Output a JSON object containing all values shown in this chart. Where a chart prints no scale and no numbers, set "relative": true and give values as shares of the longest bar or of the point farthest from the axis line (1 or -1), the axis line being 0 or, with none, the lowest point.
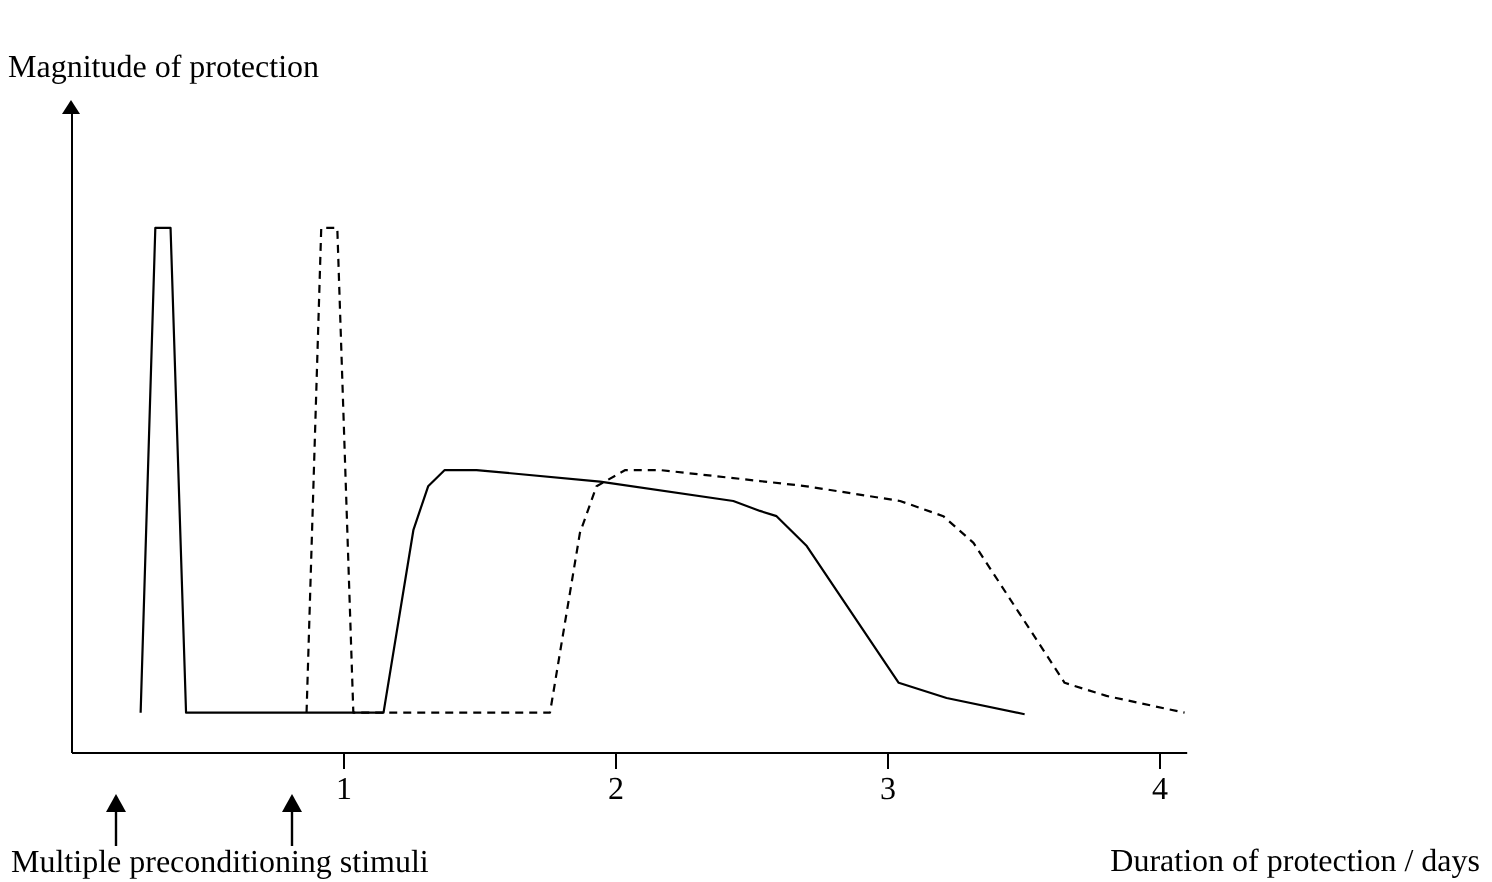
{
  "chart_data": {
    "type": "line",
    "relative": true,
    "xlabel": "Duration of protection / days",
    "ylabel": "Magnitude of protection",
    "annotations": [
      "Multiple preconditioning stimuli"
    ],
    "xlim": [
      0,
      4.1
    ],
    "xticks": [
      1,
      2,
      3,
      4
    ],
    "series": [
      {
        "color": "#000000",
        "line_style": "solid",
        "x": [
          0.256,
          0.31,
          0.366,
          0.423,
          1.149,
          1.259,
          1.313,
          1.374,
          1.491,
          1.945,
          2.435,
          2.533,
          2.594,
          2.705,
          3.043,
          3.219,
          3.506
        ],
        "values": [
          0.075,
          1,
          1,
          0.075,
          0.075,
          0.424,
          0.507,
          0.538,
          0.538,
          0.516,
          0.479,
          0.46,
          0.45,
          0.393,
          0.132,
          0.103,
          0.072
        ]
      },
      {
        "color": "#000000",
        "line_style": "dashed",
        "x": [
          0.866,
          0.92,
          0.979,
          1.038,
          1.761,
          1.871,
          1.932,
          2.038,
          2.165,
          2.533,
          2.705,
          3.048,
          3.207,
          3.318,
          3.653,
          3.807,
          4.094
        ],
        "values": [
          0.075,
          1,
          1,
          0.075,
          0.075,
          0.418,
          0.507,
          0.538,
          0.538,
          0.517,
          0.507,
          0.479,
          0.45,
          0.399,
          0.132,
          0.107,
          0.075
        ]
      }
    ]
  }
}
